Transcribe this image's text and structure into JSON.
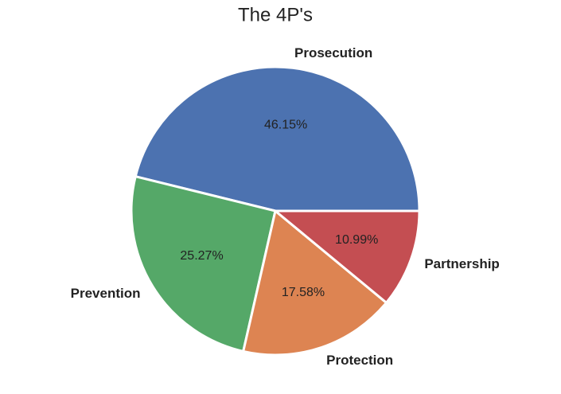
{
  "chart_data": {
    "type": "pie",
    "title": "The 4P's",
    "categories": [
      "Prosecution",
      "Prevention",
      "Protection",
      "Partnership"
    ],
    "values": [
      46.15,
      25.27,
      17.58,
      10.99
    ],
    "value_labels": [
      "46.15%",
      "25.27%",
      "17.58%",
      "10.99%"
    ],
    "colors": [
      "#4c72b0",
      "#55a868",
      "#dd8452",
      "#c44e52"
    ]
  }
}
